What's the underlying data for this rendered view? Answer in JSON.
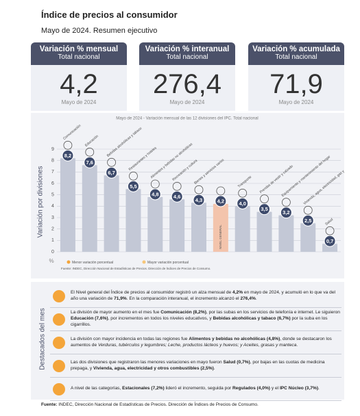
{
  "title": "Índice de precios al consumidor",
  "subtitle": "Mayo de 2024. Resumen ejecutivo",
  "kpis": [
    {
      "title": "Variación % mensual",
      "subtitle": "Total nacional",
      "value": "4,2",
      "period": "Mayo de 2024"
    },
    {
      "title": "Variación % interanual",
      "subtitle": "Total nacional",
      "value": "276,4",
      "period": "Mayo de 2024"
    },
    {
      "title": "Variación % acumulada",
      "subtitle": "Total nacional",
      "value": "71,9",
      "period": "Mayo de 2024"
    }
  ],
  "chart_data": {
    "type": "bar",
    "title": "Mayo de 2024 - Variación mensual de las 12 divisiones del IPC. Total nacional",
    "y_label": "Variación por divisiones",
    "y_unit": "%",
    "categories": [
      "Comunicación",
      "Educación",
      "Bebidas alcohólicas y tabaco",
      "Restaurantes y hoteles",
      "Alimentos y bebidas no alcohólicas",
      "Recreación y cultura",
      "Bienes y servicios varios",
      "NIVEL GENERAL",
      "Transporte",
      "Prendas de vestir y calzado",
      "Equipamiento y mantenimiento del hogar",
      "Vivienda, agua, electricidad, gas y otros combustibles",
      "Salud"
    ],
    "values": [
      8.2,
      7.6,
      6.7,
      5.5,
      4.8,
      4.6,
      4.3,
      4.2,
      4.0,
      3.5,
      3.2,
      2.5,
      0.7
    ],
    "value_labels": [
      "8,2",
      "7,6",
      "6,7",
      "5,5",
      "4,8",
      "4,6",
      "4,3",
      "4,2",
      "4,0",
      "3,5",
      "3,2",
      "2,5",
      "0,7"
    ],
    "colors": [
      "#c3c8d6",
      "#c3c8d6",
      "#c3c8d6",
      "#c3c8d6",
      "#c3c8d6",
      "#c3c8d6",
      "#c3c8d6",
      "#f3c4ac",
      "#c3c8d6",
      "#c3c8d6",
      "#c3c8d6",
      "#c3c8d6",
      "#c3c8d6"
    ],
    "ylim": [
      0,
      9
    ],
    "yticks": [
      0,
      1,
      2,
      3,
      4,
      5,
      6,
      7,
      8,
      9
    ],
    "grid": true,
    "legend": [
      "Menor variación porcentual",
      "Mayor variación porcentual"
    ],
    "source": "Fuente: INDEC, Dirección Nacional de Estadísticas de Precios. Dirección de Índices de Precios de Consumo."
  },
  "highlights": {
    "title": "Destacados del mes",
    "items": [
      [
        "El Nivel general del Índice de precios al consumidor registró un alza mensual de ",
        {
          "text": "4,2%",
          "style": "bold"
        },
        " en mayo de 2024, y acumuló en lo que va del año una variación de ",
        {
          "text": "71,9%",
          "style": "bold"
        },
        ". En la comparación interanual, el incremento alcanzó el ",
        {
          "text": "276,4%",
          "style": "bold"
        },
        "."
      ],
      [
        "La división de mayor aumento en el mes fue ",
        {
          "text": "Comunicación (8,2%)",
          "style": "bold"
        },
        ", por las subas en los servicios de telefonía e internet. Le siguieron ",
        {
          "text": "Educación (7,6%)",
          "style": "bold"
        },
        ", por incrementos en todos los niveles educativos, y ",
        {
          "text": "Bebidas alcohólicas y tabaco (6,7%)",
          "style": "bold"
        },
        " por la suba en los cigarrillos."
      ],
      [
        "La división con mayor incidencia en todas las regiones fue ",
        {
          "text": "Alimentos y bebidas no alcohólicas (4,8%)",
          "style": "bold"
        },
        ", donde se destacaron los aumentos de ",
        {
          "text": "Verduras, tubérculos y legumbres; Leche, productos lácteos y huevos; y Aceites, grasas y manteca",
          "style": "italic"
        },
        "."
      ],
      [
        "Las dos divisiones que registraron las menores variaciones en mayo fueron ",
        {
          "text": "Salud (0,7%)",
          "style": "bold"
        },
        ", por bajas en las cuotas de medicina prepaga, y ",
        {
          "text": "Vivienda, agua, electricidad y otros combustibles (2,5%)",
          "style": "bold"
        },
        "."
      ],
      [
        "A nivel de las categorías, ",
        {
          "text": "Estacionales (7,2%)",
          "style": "bold"
        },
        " lideró el incremento, seguida por ",
        {
          "text": "Regulados (4,0%)",
          "style": "bold"
        },
        " y el ",
        {
          "text": "IPC Núcleo (3,7%)",
          "style": "bold"
        },
        "."
      ]
    ]
  },
  "footer": [
    {
      "text": "Fuente:",
      "style": "bold"
    },
    " INDEC, Dirección Nacional de Estadísticas de Precios. Dirección de Índices de Precios de Consumo."
  ]
}
